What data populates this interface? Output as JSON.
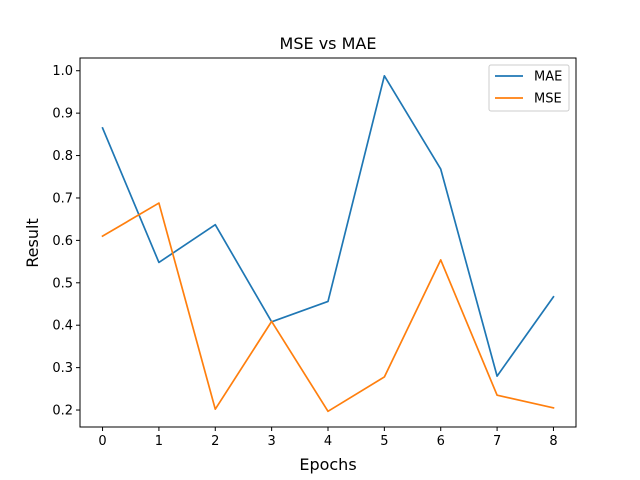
{
  "chart_data": {
    "type": "line",
    "title": "MSE vs MAE",
    "xlabel": "Epochs",
    "ylabel": "Result",
    "x": [
      0,
      1,
      2,
      3,
      4,
      5,
      6,
      7,
      8
    ],
    "x_ticks": [
      "0",
      "1",
      "2",
      "3",
      "4",
      "5",
      "6",
      "7",
      "8"
    ],
    "y_ticks": [
      "0.2",
      "0.3",
      "0.4",
      "0.5",
      "0.6",
      "0.7",
      "0.8",
      "0.9",
      "1.0"
    ],
    "xlim": [
      -0.4,
      8.4
    ],
    "ylim": [
      0.16,
      1.03
    ],
    "grid": false,
    "legend_position": "top-right",
    "series": [
      {
        "name": "MAE",
        "color": "#1f77b4",
        "values": [
          0.865,
          0.548,
          0.637,
          0.408,
          0.456,
          0.988,
          0.768,
          0.28,
          0.467
        ]
      },
      {
        "name": "MSE",
        "color": "#ff7f0e",
        "values": [
          0.61,
          0.688,
          0.202,
          0.409,
          0.197,
          0.278,
          0.554,
          0.235,
          0.205
        ]
      }
    ]
  }
}
